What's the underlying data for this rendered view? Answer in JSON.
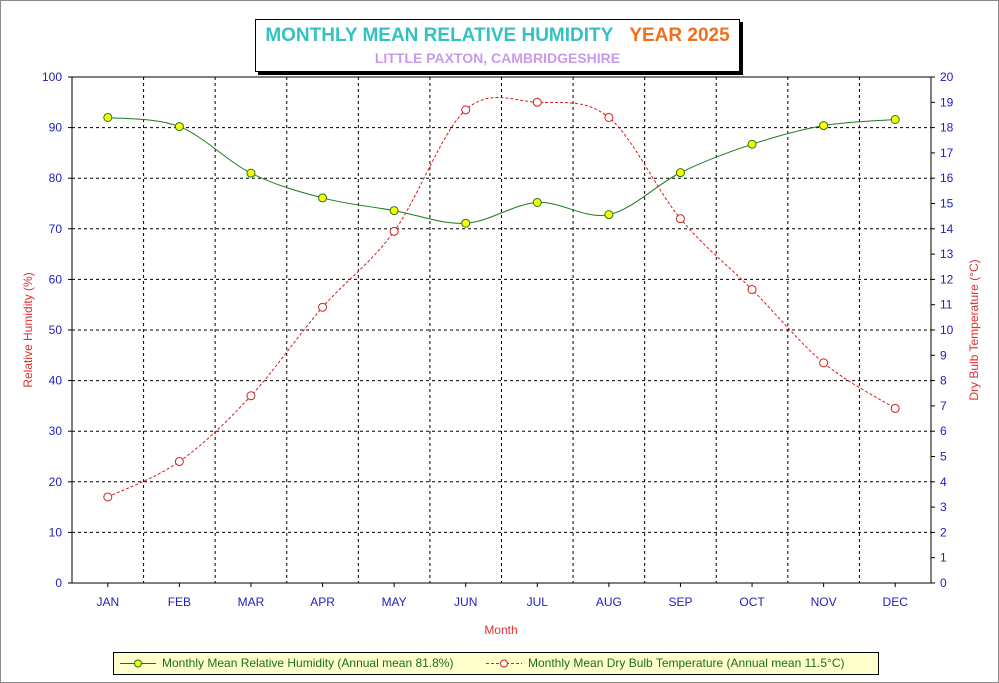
{
  "title": {
    "main": "MONTHLY MEAN RELATIVE HUMIDITY",
    "year": "YEAR 2025",
    "subtitle": "LITTLE PAXTON, CAMBRIDGESHIRE"
  },
  "colors": {
    "humidity_line": "#1a7a1a",
    "humidity_marker": "#ffff00",
    "temp_line": "#d02020",
    "tick_text": "#2020c0",
    "axis_label": "#e03030",
    "legend_bg": "#ffffcc"
  },
  "legend": {
    "humidity": "Monthly Mean Relative Humidity (Annual mean 81.8%)",
    "temperature": "Monthly Mean Dry Bulb Temperature (Annual mean 11.5°C)"
  },
  "chart_data": {
    "type": "line",
    "title": "MONTHLY MEAN RELATIVE HUMIDITY YEAR 2025",
    "subtitle": "LITTLE PAXTON, CAMBRIDGESHIRE",
    "xlabel": "Month",
    "ylabel": "Relative Humidity (%)",
    "y2label": "Dry Bulb Temperature (°C)",
    "categories": [
      "JAN",
      "FEB",
      "MAR",
      "APR",
      "MAY",
      "JUN",
      "JUL",
      "AUG",
      "SEP",
      "OCT",
      "NOV",
      "DEC"
    ],
    "ylim": [
      0,
      100
    ],
    "y2lim": [
      0,
      20
    ],
    "yticks": [
      "0",
      "10",
      "20",
      "30",
      "40",
      "50",
      "60",
      "70",
      "80",
      "90",
      "100"
    ],
    "y2ticks": [
      "0",
      "1",
      "2",
      "3",
      "4",
      "5",
      "6",
      "7",
      "8",
      "9",
      "10",
      "11",
      "12",
      "13",
      "14",
      "15",
      "16",
      "17",
      "18",
      "19",
      "20"
    ],
    "grid": true,
    "legend_position": "bottom",
    "series": [
      {
        "name": "Monthly Mean Relative Humidity (Annual mean 81.8%)",
        "axis": "left",
        "style": "solid",
        "values": [
          92.0,
          90.2,
          81.0,
          76.1,
          73.6,
          71.1,
          75.2,
          72.8,
          81.1,
          86.7,
          90.4,
          91.6
        ]
      },
      {
        "name": "Monthly Mean Dry Bulb Temperature (Annual mean 11.5°C)",
        "axis": "right",
        "style": "dashed",
        "values": [
          3.4,
          4.8,
          7.4,
          10.9,
          13.9,
          18.7,
          19.0,
          18.4,
          14.4,
          11.6,
          8.7,
          6.9
        ]
      }
    ]
  }
}
